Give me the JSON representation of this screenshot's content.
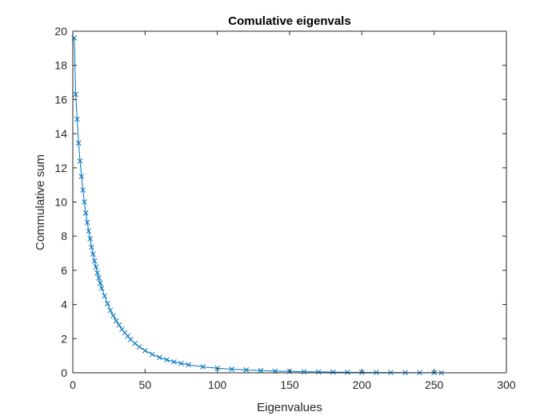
{
  "chart_data": {
    "type": "line",
    "title": "Comulative eigenvals",
    "xlabel": "Eigenvalues",
    "ylabel": "Commulative sum",
    "xlim": [
      0,
      300
    ],
    "ylim": [
      0,
      20
    ],
    "xticks": [
      0,
      50,
      100,
      150,
      200,
      250,
      300
    ],
    "yticks": [
      0,
      2,
      4,
      6,
      8,
      10,
      12,
      14,
      16,
      18,
      20
    ],
    "grid": false,
    "legend": "none",
    "marker": "x",
    "line_color": "#0072BD",
    "series": [
      {
        "x": [
          1,
          2,
          3,
          4,
          5,
          6,
          7,
          8,
          9,
          10,
          11,
          12,
          13,
          14,
          15,
          16,
          17,
          18,
          19,
          20,
          22,
          24,
          26,
          28,
          30,
          32,
          34,
          36,
          38,
          40,
          43,
          46,
          50,
          55,
          60,
          65,
          70,
          75,
          80,
          90,
          100,
          110,
          120,
          130,
          140,
          150,
          160,
          170,
          180,
          190,
          200,
          210,
          220,
          230,
          240,
          250,
          255
        ],
        "y": [
          19.6,
          16.3,
          14.85,
          13.45,
          12.4,
          11.5,
          10.7,
          10.0,
          9.35,
          8.8,
          8.3,
          7.85,
          7.35,
          6.95,
          6.55,
          6.2,
          5.85,
          5.55,
          5.25,
          4.95,
          4.5,
          4.05,
          3.65,
          3.35,
          3.05,
          2.8,
          2.55,
          2.35,
          2.15,
          1.95,
          1.72,
          1.52,
          1.3,
          1.08,
          0.9,
          0.76,
          0.64,
          0.55,
          0.47,
          0.35,
          0.27,
          0.21,
          0.17,
          0.13,
          0.1,
          0.08,
          0.06,
          0.05,
          0.04,
          0.03,
          0.025,
          0.02,
          0.015,
          0.01,
          0.008,
          0.005,
          0.003
        ]
      }
    ]
  }
}
